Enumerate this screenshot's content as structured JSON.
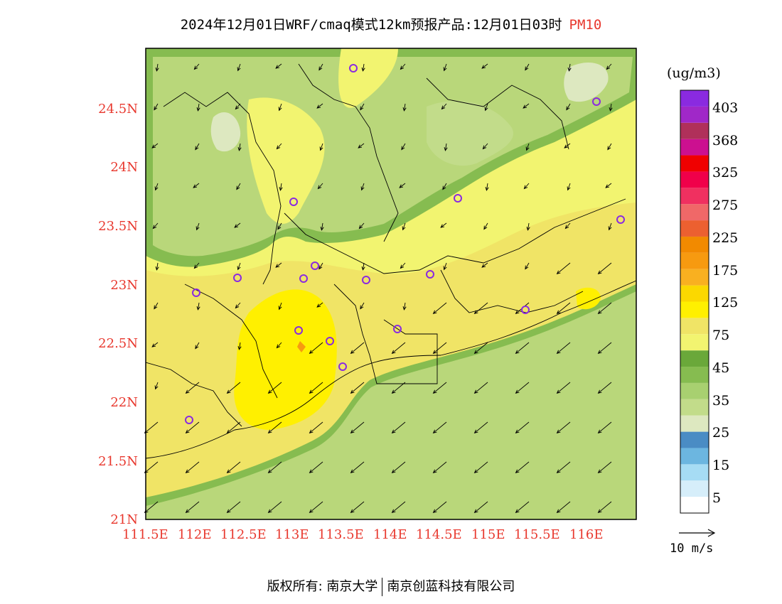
{
  "title": {
    "main": "2024年12月01日WRF/cmaq模式12km预报产品:12月01日03时",
    "variable": "PM10"
  },
  "axes": {
    "lat_labels": [
      "24.5N",
      "24N",
      "23.5N",
      "23N",
      "22.5N",
      "22N",
      "21.5N",
      "21N"
    ],
    "lon_labels": [
      "111.5E",
      "112E",
      "112.5E",
      "113E",
      "113.5E",
      "114E",
      "114.5E",
      "115E",
      "115.5E",
      "116E"
    ]
  },
  "colorbar": {
    "unit": "(ug/m3)",
    "labels": [
      "403",
      "368",
      "325",
      "275",
      "225",
      "175",
      "125",
      "75",
      "45",
      "35",
      "25",
      "15",
      "5"
    ],
    "colors": [
      "#ffffff",
      "#d6eefa",
      "#a6dcf4",
      "#6cb6e0",
      "#4a8cc4",
      "#dde8c0",
      "#c2dc8a",
      "#a8d070",
      "#86bc50",
      "#6aa83a",
      "#f2f470",
      "#f0e466",
      "#fff000",
      "#fbd800",
      "#f9b020",
      "#f79a10",
      "#f28a00",
      "#ec6030",
      "#f06868",
      "#f03060",
      "#f0004a",
      "#f00000",
      "#cc1090",
      "#b0305a",
      "#a028c8",
      "#8a2ae0"
    ]
  },
  "legend": {
    "wind_scale": "10 m/s"
  },
  "footer": {
    "copyright": "版权所有: 南京大学",
    "company": "南京创蓝科技有限公司"
  }
}
